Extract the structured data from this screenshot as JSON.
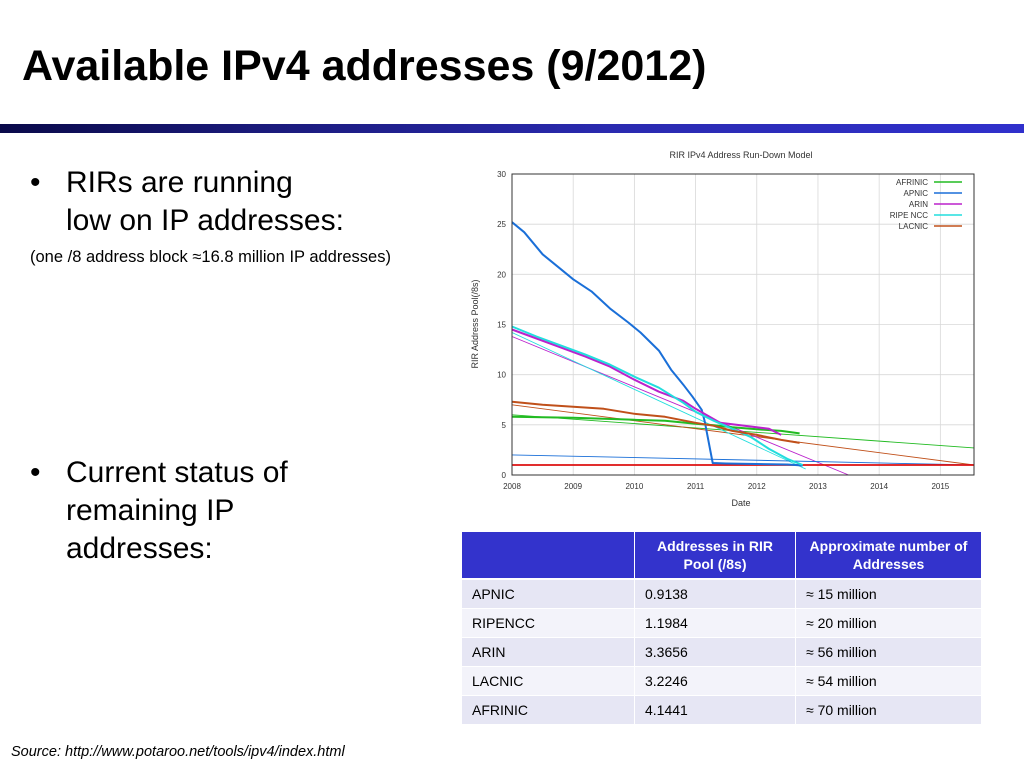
{
  "slide": {
    "title": "Available IPv4 addresses (9/2012)",
    "bullets": [
      {
        "marker": "•",
        "lines": [
          "RIRs are running",
          "low on IP addresses:"
        ]
      },
      {
        "marker": "•",
        "lines": [
          "Current status of",
          "remaining IP",
          "addresses:"
        ]
      }
    ],
    "note": "(one /8 address block ≈16.8 million IP addresses)",
    "source": "Source: http://www.potaroo.net/tools/ipv4/index.html"
  },
  "table": {
    "headers": [
      "",
      "Addresses in RIR Pool (/8s)",
      "Approximate number of Addresses"
    ],
    "rows": [
      [
        "APNIC",
        "0.9138",
        "≈ 15 million"
      ],
      [
        "RIPENCC",
        "1.1984",
        "≈ 20 million"
      ],
      [
        "ARIN",
        "3.3656",
        "≈ 56 million"
      ],
      [
        "LACNIC",
        "3.2246",
        "≈ 54 million"
      ],
      [
        "AFRINIC",
        "4.1441",
        "≈ 70 million"
      ]
    ]
  },
  "chart_data": {
    "type": "line",
    "title": "RIR IPv4 Address Run-Down Model",
    "xlabel": "Date",
    "ylabel": "RIR Address Pool(/8s)",
    "xlim": [
      2008.0,
      2015.55
    ],
    "ylim": [
      0,
      30
    ],
    "x_ticks": [
      2008,
      2009,
      2010,
      2011,
      2012,
      2013,
      2014,
      2015
    ],
    "y_ticks": [
      0,
      5,
      10,
      15,
      20,
      25,
      30
    ],
    "grid": true,
    "legend_position": "top-right",
    "series": [
      {
        "name": "AFRINIC",
        "color": "#22bb22",
        "x": [
          2008.0,
          2008.5,
          2009.0,
          2009.5,
          2010.0,
          2010.5,
          2011.0,
          2011.3,
          2011.6,
          2012.0,
          2012.4,
          2012.7
        ],
        "y": [
          5.8,
          5.75,
          5.7,
          5.6,
          5.5,
          5.4,
          5.1,
          4.95,
          4.75,
          4.55,
          4.4,
          4.15
        ]
      },
      {
        "name": "APNIC",
        "color": "#1a6fd8",
        "x": [
          2008.0,
          2008.2,
          2008.5,
          2008.8,
          2009.0,
          2009.3,
          2009.6,
          2009.9,
          2010.1,
          2010.4,
          2010.6,
          2010.8,
          2010.95,
          2011.1,
          2011.15,
          2011.28,
          2011.5,
          2012.0,
          2012.5,
          2012.75
        ],
        "y": [
          25.2,
          24.2,
          22.0,
          20.5,
          19.5,
          18.3,
          16.6,
          15.2,
          14.2,
          12.4,
          10.5,
          9.0,
          7.8,
          6.5,
          5.3,
          1.2,
          1.15,
          1.1,
          1.05,
          0.95
        ]
      },
      {
        "name": "ARIN",
        "color": "#bb22cc",
        "x": [
          2008.0,
          2008.4,
          2008.8,
          2009.2,
          2009.6,
          2010.0,
          2010.4,
          2010.8,
          2011.0,
          2011.4,
          2011.8,
          2012.2,
          2012.4
        ],
        "y": [
          14.5,
          13.6,
          12.7,
          11.8,
          10.8,
          9.5,
          8.3,
          7.4,
          6.6,
          5.2,
          4.9,
          4.6,
          4.0
        ]
      },
      {
        "name": "RIPE NCC",
        "color": "#22dddd",
        "x": [
          2008.0,
          2008.4,
          2008.8,
          2009.2,
          2009.6,
          2010.0,
          2010.4,
          2010.8,
          2011.0,
          2011.3,
          2011.6,
          2011.9,
          2012.2,
          2012.5,
          2012.75
        ],
        "y": [
          14.8,
          13.8,
          12.9,
          12.0,
          11.0,
          9.8,
          8.7,
          7.2,
          6.3,
          5.4,
          4.6,
          3.8,
          2.6,
          1.6,
          1.0
        ]
      },
      {
        "name": "LACNIC",
        "color": "#c0501a",
        "x": [
          2008.0,
          2008.5,
          2009.0,
          2009.5,
          2010.0,
          2010.5,
          2011.0,
          2011.3,
          2011.6,
          2012.0,
          2012.4,
          2012.7
        ],
        "y": [
          7.3,
          7.0,
          6.8,
          6.6,
          6.1,
          5.8,
          5.2,
          4.9,
          4.4,
          4.0,
          3.5,
          3.2
        ]
      }
    ],
    "projections": [
      {
        "color": "#22bb22",
        "x": [
          2008.0,
          2015.55
        ],
        "y": [
          6.0,
          2.7
        ]
      },
      {
        "color": "#c0501a",
        "x": [
          2008.0,
          2015.55
        ],
        "y": [
          7.0,
          1.0
        ]
      },
      {
        "color": "#bb22cc",
        "x": [
          2008.0,
          2013.5
        ],
        "y": [
          13.8,
          0.0
        ]
      },
      {
        "color": "#22dddd",
        "x": [
          2008.0,
          2012.8
        ],
        "y": [
          14.2,
          0.6
        ]
      },
      {
        "color": "#1a6fd8",
        "x": [
          2008.0,
          2015.55
        ],
        "y": [
          2.0,
          1.0
        ]
      }
    ],
    "reference_line": {
      "color": "#dd1111",
      "y": 1.0
    }
  }
}
